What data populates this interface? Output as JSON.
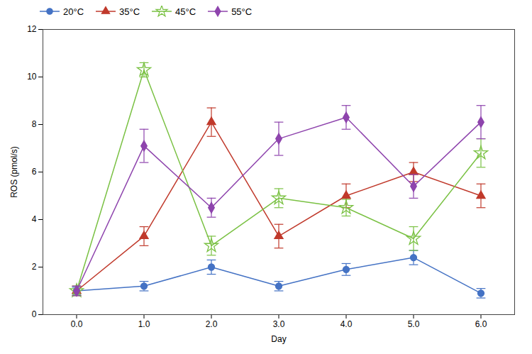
{
  "chart_data": {
    "type": "line",
    "xlabel": "Day",
    "ylabel": "ROS (pmol/s)",
    "x": [
      0,
      1,
      2,
      3,
      4,
      5,
      6
    ],
    "series": [
      {
        "name": "20°C",
        "color": "#4472C4",
        "marker": "circle",
        "values": [
          1.0,
          1.2,
          2.0,
          1.2,
          1.9,
          2.4,
          0.9
        ],
        "errors": [
          0.15,
          0.2,
          0.3,
          0.2,
          0.25,
          0.3,
          0.2
        ]
      },
      {
        "name": "35°C",
        "color": "#C0392B",
        "marker": "triangle",
        "values": [
          1.0,
          3.3,
          8.1,
          3.3,
          5.0,
          6.0,
          5.0
        ],
        "errors": [
          0.2,
          0.4,
          0.6,
          0.5,
          0.5,
          0.4,
          0.5
        ]
      },
      {
        "name": "45°C",
        "color": "#7AC143",
        "marker": "star-open",
        "values": [
          1.0,
          10.3,
          2.9,
          4.9,
          4.5,
          3.2,
          6.8
        ],
        "errors": [
          0.2,
          0.3,
          0.4,
          0.4,
          0.35,
          0.5,
          0.6
        ]
      },
      {
        "name": "55°C",
        "color": "#8E44AD",
        "marker": "diamond",
        "values": [
          1.0,
          7.1,
          4.5,
          7.4,
          8.3,
          5.4,
          8.1
        ],
        "errors": [
          0.2,
          0.7,
          0.4,
          0.7,
          0.5,
          0.5,
          0.7
        ]
      }
    ],
    "xlim": [
      -0.5,
      6.5
    ],
    "xticks": [
      0,
      1,
      2,
      3,
      4,
      5,
      6
    ],
    "ylim": [
      0,
      12
    ],
    "yticks": [
      0,
      2,
      4,
      6,
      8,
      10,
      12
    ],
    "grid": false,
    "legend": "upper left"
  }
}
